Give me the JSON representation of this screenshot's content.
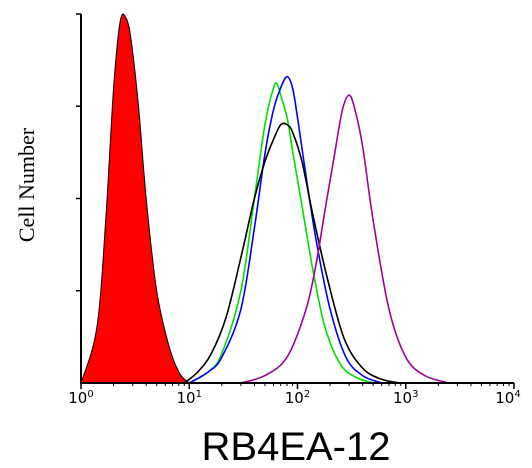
{
  "chart_data": {
    "type": "area",
    "title": "",
    "xlabel": "RB4EA-12",
    "ylabel": "Cell Number",
    "x_scale": "log",
    "xlim": [
      1,
      10000
    ],
    "ylim": [
      0,
      1
    ],
    "grid": false,
    "legend": "none",
    "x_ticks": [
      {
        "base": "10",
        "exp": "0"
      },
      {
        "base": "10",
        "exp": "1"
      },
      {
        "base": "10",
        "exp": "2"
      },
      {
        "base": "10",
        "exp": "3"
      },
      {
        "base": "10",
        "exp": "4"
      }
    ],
    "series": [
      {
        "color": "#ff0000",
        "filled": true,
        "x": [
          1.0,
          1.4,
          1.7,
          2.0,
          2.3,
          2.6,
          2.9,
          3.4,
          4.0,
          5.0,
          6.5,
          8.0,
          9.5,
          10.5
        ],
        "y": [
          0.0,
          0.15,
          0.45,
          0.8,
          0.98,
          0.99,
          0.93,
          0.75,
          0.5,
          0.25,
          0.1,
          0.03,
          0.005,
          0.0
        ]
      },
      {
        "color": "#00e000",
        "filled": false,
        "x": [
          10,
          15,
          20,
          30,
          40,
          50,
          60,
          65,
          70,
          80,
          90,
          110,
          140,
          180,
          250,
          350,
          500
        ],
        "y": [
          0.0,
          0.03,
          0.08,
          0.25,
          0.5,
          0.7,
          0.8,
          0.81,
          0.78,
          0.72,
          0.63,
          0.48,
          0.3,
          0.15,
          0.05,
          0.015,
          0.0
        ]
      },
      {
        "color": "#0000ff",
        "filled": false,
        "x": [
          10,
          15,
          20,
          30,
          40,
          50,
          60,
          70,
          80,
          90,
          100,
          120,
          150,
          200,
          280,
          400,
          600
        ],
        "y": [
          0.0,
          0.03,
          0.07,
          0.2,
          0.42,
          0.62,
          0.74,
          0.8,
          0.83,
          0.8,
          0.72,
          0.56,
          0.38,
          0.2,
          0.07,
          0.02,
          0.0
        ]
      },
      {
        "color": "#000000",
        "filled": false,
        "x": [
          9,
          12,
          16,
          22,
          30,
          40,
          50,
          60,
          70,
          80,
          90,
          110,
          140,
          190,
          270,
          400,
          600,
          900
        ],
        "y": [
          0.0,
          0.03,
          0.08,
          0.18,
          0.34,
          0.5,
          0.6,
          0.66,
          0.7,
          0.7,
          0.68,
          0.6,
          0.45,
          0.28,
          0.12,
          0.04,
          0.01,
          0.0
        ]
      },
      {
        "color": "#a000a0",
        "filled": false,
        "x": [
          30,
          50,
          80,
          120,
          150,
          180,
          220,
          260,
          300,
          340,
          400,
          500,
          700,
          1000,
          1500,
          2500
        ],
        "y": [
          0.0,
          0.02,
          0.07,
          0.2,
          0.33,
          0.47,
          0.62,
          0.74,
          0.78,
          0.74,
          0.64,
          0.44,
          0.2,
          0.07,
          0.02,
          0.0
        ]
      }
    ]
  }
}
